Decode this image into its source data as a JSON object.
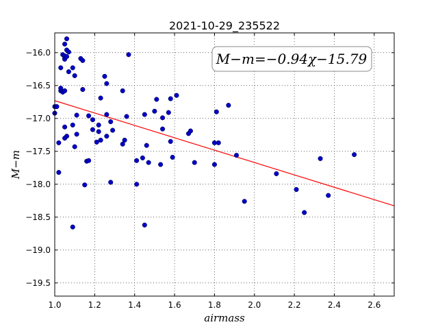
{
  "chart_data": {
    "type": "scatter",
    "title": "2021-10-29_235522",
    "xlabel": "airmass",
    "ylabel": "M−m",
    "xlim": [
      1.0,
      2.7
    ],
    "ylim": [
      -15.7,
      -19.7
    ],
    "y_inverted": true,
    "x_ticks": [
      1.0,
      1.2,
      1.4,
      1.6,
      1.8,
      2.0,
      2.2,
      2.4,
      2.6
    ],
    "x_tick_labels": [
      "1.0",
      "1.2",
      "1.4",
      "1.6",
      "1.8",
      "2.0",
      "2.2",
      "2.4",
      "2.6"
    ],
    "y_ticks": [
      -16.0,
      -16.5,
      -17.0,
      -17.5,
      -18.0,
      -18.5,
      -19.0,
      -19.5
    ],
    "y_tick_labels": [
      "−16.0",
      "−16.5",
      "−17.0",
      "−17.5",
      "−18.0",
      "−18.5",
      "−19.0",
      "−19.5"
    ],
    "grid": true,
    "grid_style": "dotted",
    "annotation": {
      "text": "M−m=−0.94χ−15.79",
      "position": "top-right"
    },
    "fit_line": {
      "slope": -0.94,
      "intercept": -15.79,
      "color": "#ff0000"
    },
    "marker_color": "#0000cc",
    "points": [
      [
        1.0,
        -16.82
      ],
      [
        1.0,
        -16.92
      ],
      [
        1.01,
        -16.82
      ],
      [
        1.02,
        -17.37
      ],
      [
        1.02,
        -17.82
      ],
      [
        1.03,
        -16.23
      ],
      [
        1.03,
        -16.58
      ],
      [
        1.03,
        -16.54
      ],
      [
        1.04,
        -16.03
      ],
      [
        1.04,
        -16.6
      ],
      [
        1.05,
        -16.08
      ],
      [
        1.05,
        -16.1
      ],
      [
        1.05,
        -16.05
      ],
      [
        1.05,
        -15.87
      ],
      [
        1.05,
        -17.13
      ],
      [
        1.05,
        -17.3
      ],
      [
        1.05,
        -16.58
      ],
      [
        1.06,
        -15.96
      ],
      [
        1.06,
        -15.79
      ],
      [
        1.06,
        -16.06
      ],
      [
        1.06,
        -17.27
      ],
      [
        1.07,
        -15.99
      ],
      [
        1.07,
        -16.29
      ],
      [
        1.09,
        -16.23
      ],
      [
        1.09,
        -17.1
      ],
      [
        1.09,
        -18.65
      ],
      [
        1.1,
        -17.43
      ],
      [
        1.1,
        -16.35
      ],
      [
        1.11,
        -16.95
      ],
      [
        1.11,
        -17.24
      ],
      [
        1.13,
        -16.09
      ],
      [
        1.14,
        -16.12
      ],
      [
        1.14,
        -16.56
      ],
      [
        1.15,
        -18.01
      ],
      [
        1.16,
        -17.65
      ],
      [
        1.17,
        -17.64
      ],
      [
        1.17,
        -16.96
      ],
      [
        1.19,
        -17.17
      ],
      [
        1.19,
        -17.02
      ],
      [
        1.21,
        -17.36
      ],
      [
        1.22,
        -17.1
      ],
      [
        1.22,
        -17.2
      ],
      [
        1.23,
        -16.69
      ],
      [
        1.23,
        -17.33
      ],
      [
        1.25,
        -16.36
      ],
      [
        1.26,
        -16.47
      ],
      [
        1.26,
        -16.94
      ],
      [
        1.26,
        -17.27
      ],
      [
        1.28,
        -17.05
      ],
      [
        1.28,
        -17.97
      ],
      [
        1.29,
        -17.18
      ],
      [
        1.34,
        -16.58
      ],
      [
        1.34,
        -17.39
      ],
      [
        1.35,
        -17.33
      ],
      [
        1.36,
        -16.97
      ],
      [
        1.37,
        -16.03
      ],
      [
        1.41,
        -17.64
      ],
      [
        1.41,
        -18.0
      ],
      [
        1.44,
        -17.6
      ],
      [
        1.45,
        -18.62
      ],
      [
        1.45,
        -16.94
      ],
      [
        1.46,
        -17.41
      ],
      [
        1.47,
        -17.67
      ],
      [
        1.5,
        -16.89
      ],
      [
        1.51,
        -16.71
      ],
      [
        1.53,
        -17.7
      ],
      [
        1.54,
        -17.16
      ],
      [
        1.54,
        -16.99
      ],
      [
        1.57,
        -16.91
      ],
      [
        1.58,
        -17.35
      ],
      [
        1.58,
        -16.7
      ],
      [
        1.59,
        -17.59
      ],
      [
        1.61,
        -16.65
      ],
      [
        1.67,
        -17.23
      ],
      [
        1.68,
        -17.19
      ],
      [
        1.7,
        -17.67
      ],
      [
        1.8,
        -17.7
      ],
      [
        1.8,
        -17.37
      ],
      [
        1.81,
        -16.9
      ],
      [
        1.82,
        -17.37
      ],
      [
        1.87,
        -16.8
      ],
      [
        1.91,
        -17.56
      ],
      [
        1.95,
        -18.26
      ],
      [
        2.11,
        -17.84
      ],
      [
        2.21,
        -18.08
      ],
      [
        2.25,
        -18.43
      ],
      [
        2.33,
        -17.61
      ],
      [
        2.37,
        -18.17
      ],
      [
        2.5,
        -17.55
      ]
    ]
  }
}
